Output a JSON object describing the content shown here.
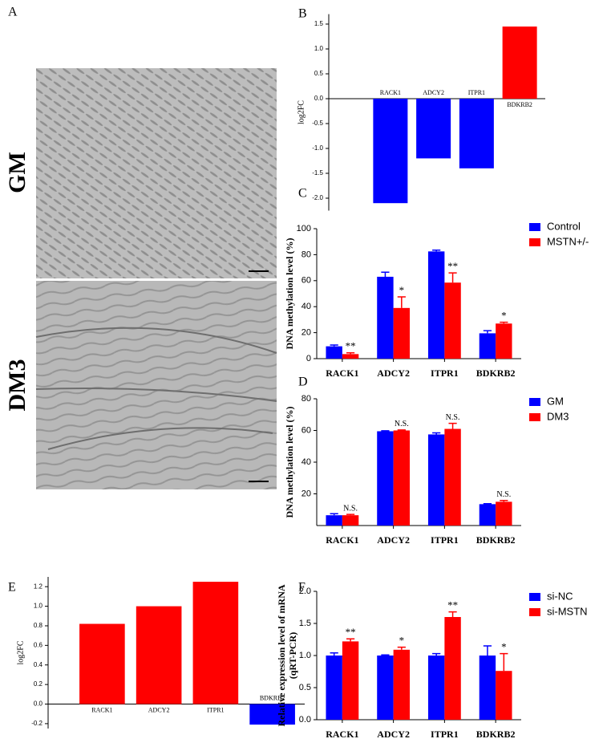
{
  "images": {
    "label": "A",
    "items": [
      {
        "label": "GM"
      },
      {
        "label": "DM3"
      }
    ]
  },
  "chart_data": [
    {
      "label": "B",
      "type": "bar",
      "ylabel": "log2FC",
      "categories": [
        "RACK1",
        "ADCY2",
        "ITPR1",
        "BDKRB2"
      ],
      "values": [
        -2.1,
        -1.2,
        -1.4,
        1.45
      ],
      "colors": [
        "#0000ff",
        "#0000ff",
        "#0000ff",
        "#ff0000"
      ],
      "ylim": [
        -2.25,
        1.7
      ],
      "yticks": [
        {
          "value": -2,
          "label": "-2.0"
        },
        {
          "value": -1.5,
          "label": "-1.5"
        },
        {
          "value": -1,
          "label": "-1.0"
        },
        {
          "value": -0.5,
          "label": "-0.5"
        },
        {
          "value": 0,
          "label": "0.0"
        },
        {
          "value": 0.5,
          "label": "0.5"
        },
        {
          "value": 1,
          "label": "1.0"
        },
        {
          "value": 1.5,
          "label": "1.5"
        }
      ]
    },
    {
      "label": "C",
      "type": "grouped_bar",
      "ylabel": "DNA methylation level (%)",
      "categories": [
        "RACK1",
        "ADCY2",
        "ITPR1",
        "BDKRB2"
      ],
      "series": [
        {
          "name": "Control",
          "color": "#0000ff",
          "values": [
            9.5,
            63,
            82.5,
            19.5
          ],
          "errors": [
            1,
            3.5,
            1,
            2
          ]
        },
        {
          "name": "MSTN+/-",
          "color": "#ff0000",
          "values": [
            3.5,
            39,
            58.5,
            27
          ],
          "errors": [
            1,
            8.5,
            7.5,
            1
          ]
        }
      ],
      "significance": [
        "**",
        "*",
        "**",
        "*"
      ],
      "ylim": [
        0,
        100
      ],
      "yticks": [
        0,
        20,
        40,
        60,
        80,
        100
      ]
    },
    {
      "label": "D",
      "type": "grouped_bar",
      "ylabel": "DNA methylation level (%)",
      "categories": [
        "RACK1",
        "ADCY2",
        "ITPR1",
        "BDKRB2"
      ],
      "series": [
        {
          "name": "GM",
          "color": "#0000ff",
          "values": [
            6.5,
            59.5,
            57.5,
            13.5
          ],
          "errors": [
            1,
            0.3,
            1,
            0.3
          ]
        },
        {
          "name": "DM3",
          "color": "#ff0000",
          "values": [
            6.5,
            60,
            61,
            15
          ],
          "errors": [
            0.5,
            0.3,
            3.5,
            0.8
          ]
        }
      ],
      "significance": [
        "N.S.",
        "N.S.",
        "N.S.",
        "N.S."
      ],
      "ylim": [
        0,
        80
      ],
      "yticks": [
        20,
        40,
        60,
        80
      ]
    },
    {
      "label": "E",
      "type": "bar",
      "ylabel": "log2FC",
      "categories": [
        "RACK1",
        "ADCY2",
        "ITPR1",
        "BDKRB2"
      ],
      "values": [
        0.82,
        1.0,
        1.25,
        -0.21
      ],
      "colors": [
        "#ff0000",
        "#ff0000",
        "#ff0000",
        "#0000ff"
      ],
      "ylim": [
        -0.25,
        1.3
      ],
      "yticks": [
        {
          "value": -0.2,
          "label": "-0.2"
        },
        {
          "value": 0,
          "label": "0.0"
        },
        {
          "value": 0.2,
          "label": "0.2"
        },
        {
          "value": 0.4,
          "label": "0.4"
        },
        {
          "value": 0.6,
          "label": "0.6"
        },
        {
          "value": 0.8,
          "label": "0.8"
        },
        {
          "value": 1,
          "label": "1.0"
        },
        {
          "value": 1.2,
          "label": "1.2"
        }
      ]
    },
    {
      "label": "F",
      "type": "grouped_bar",
      "ylabel": [
        "Relative expression level of mRNA",
        "(qRT-PCR)"
      ],
      "categories": [
        "RACK1",
        "ADCY2",
        "ITPR1",
        "BDKRB2"
      ],
      "series": [
        {
          "name": "si-NC",
          "color": "#0000ff",
          "values": [
            1.0,
            1.0,
            1.0,
            1.0
          ],
          "errors": [
            0.04,
            0.01,
            0.03,
            0.15
          ]
        },
        {
          "name": "si-MSTN",
          "color": "#ff0000",
          "values": [
            1.22,
            1.09,
            1.6,
            0.76
          ],
          "errors": [
            0.04,
            0.04,
            0.08,
            0.27
          ]
        }
      ],
      "significance": [
        "**",
        "*",
        "**",
        "*"
      ],
      "ylim": [
        0,
        2
      ],
      "yticks": [
        {
          "value": 0,
          "label": "0.0"
        },
        {
          "value": 0.5,
          "label": "0.5"
        },
        {
          "value": 1,
          "label": "1.0"
        },
        {
          "value": 1.5,
          "label": "1.5"
        },
        {
          "value": 2,
          "label": "2.0"
        }
      ]
    }
  ]
}
